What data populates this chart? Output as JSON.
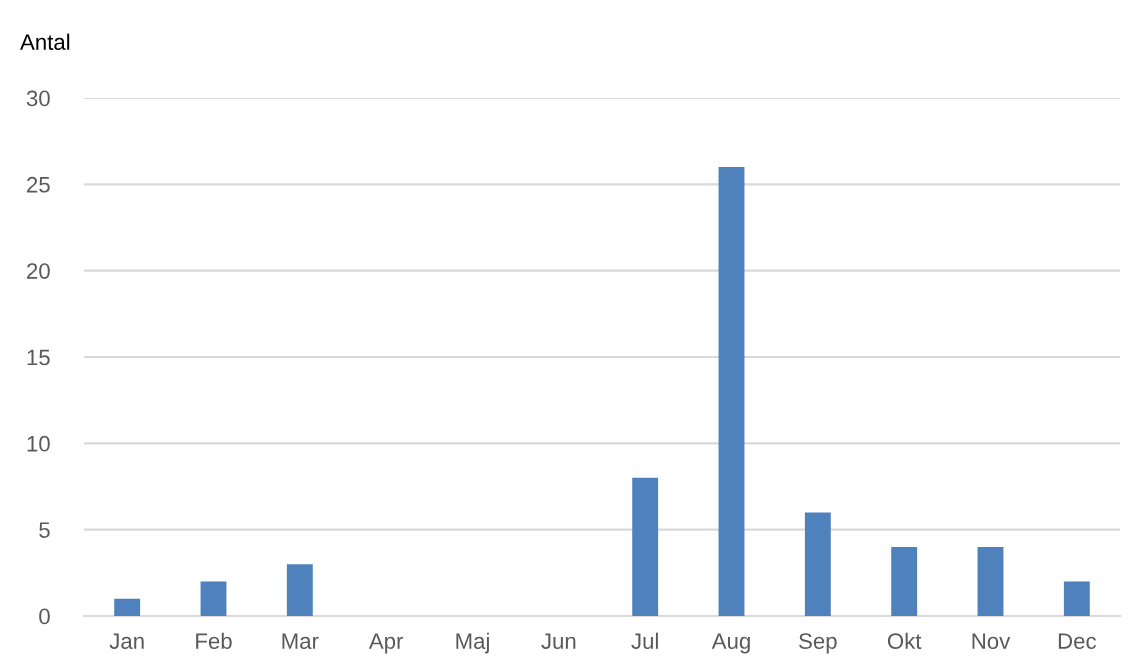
{
  "chart_data": {
    "type": "bar",
    "ylabel": "Antal",
    "categories": [
      "Jan",
      "Feb",
      "Mar",
      "Apr",
      "Maj",
      "Jun",
      "Jul",
      "Aug",
      "Sep",
      "Okt",
      "Nov",
      "Dec"
    ],
    "values": [
      1,
      2,
      3,
      0,
      0,
      0,
      8,
      26,
      6,
      4,
      4,
      2
    ],
    "color": "#4f81bd",
    "ylim": [
      0,
      30
    ],
    "yticks": [
      0,
      5,
      10,
      15,
      20,
      25,
      30
    ],
    "grid": "y",
    "legend": false
  }
}
